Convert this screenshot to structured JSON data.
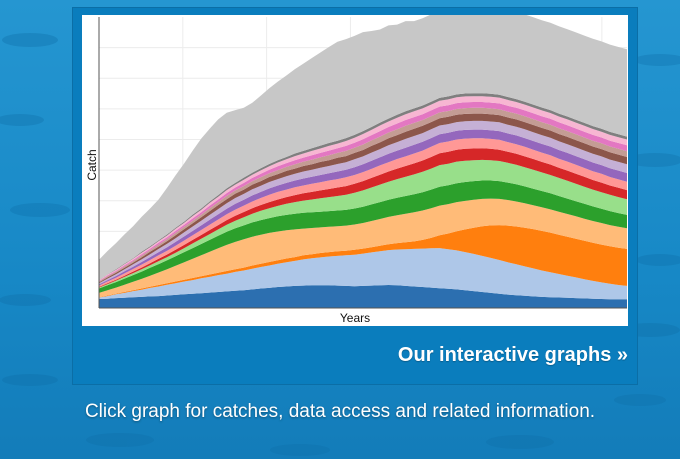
{
  "link": {
    "label": "Our interactive graphs »"
  },
  "caption": "Click graph for catches, data access and related information.",
  "colors": {
    "background": "#1a8bc6",
    "card": "#0a7dbd",
    "series": [
      "#2c6fb0",
      "#aec7e8",
      "#ff7f0e",
      "#ffbb78",
      "#2ca02c",
      "#98df8a",
      "#d62728",
      "#ff9896",
      "#9467bd",
      "#c5b0d5",
      "#8c564b",
      "#c49c94",
      "#e377c2",
      "#f7b6d2",
      "#7f7f7f",
      "#c7c7c7"
    ]
  },
  "chart_data": {
    "type": "area",
    "stacked": true,
    "xlabel": "Years",
    "ylabel": "Catch",
    "grid": true,
    "x": [
      1,
      2,
      3,
      4,
      5,
      6,
      7,
      8,
      9,
      10,
      11,
      12,
      13,
      14,
      15,
      16,
      17,
      18,
      19,
      20,
      21,
      22,
      23,
      24,
      25,
      26,
      27,
      28,
      29,
      30,
      31,
      32,
      33,
      34,
      35,
      36,
      37,
      38,
      39,
      40,
      41,
      42,
      43,
      44,
      45,
      46,
      47,
      48,
      49,
      50,
      51,
      52,
      53,
      54,
      55,
      56,
      57,
      58,
      59,
      60,
      61,
      62,
      63
    ],
    "ylim": [
      0,
      100
    ],
    "series": [
      {
        "values": [
          3.1,
          3.2,
          3.4,
          3.5,
          3.7,
          3.8,
          4.0,
          4.1,
          4.3,
          4.5,
          4.7,
          4.9,
          5.1,
          5.3,
          5.5,
          5.7,
          5.9,
          6.1,
          6.4,
          6.7,
          6.9,
          7.2,
          7.4,
          7.6,
          7.7,
          7.8,
          7.8,
          7.8,
          7.7,
          7.6,
          7.5,
          7.6,
          7.7,
          7.8,
          7.9,
          7.8,
          7.6,
          7.4,
          7.2,
          7.0,
          6.8,
          6.6,
          6.4,
          6.1,
          5.8,
          5.5,
          5.2,
          4.9,
          4.6,
          4.4,
          4.2,
          4.0,
          3.8,
          3.7,
          3.6,
          3.5,
          3.4,
          3.3,
          3.2,
          3.1,
          3.0,
          3.0,
          3.0
        ]
      },
      {
        "values": [
          0.5,
          0.9,
          1.3,
          1.7,
          2.1,
          2.5,
          2.9,
          3.3,
          3.7,
          4.0,
          4.4,
          4.7,
          5.1,
          5.4,
          5.8,
          6.1,
          6.5,
          6.8,
          7.1,
          7.4,
          7.7,
          8.0,
          8.3,
          8.6,
          9.0,
          9.3,
          9.6,
          9.9,
          10.2,
          10.5,
          10.8,
          11.1,
          11.4,
          11.7,
          12.0,
          12.3,
          12.6,
          12.9,
          13.2,
          13.5,
          13.8,
          13.6,
          13.4,
          13.1,
          12.8,
          12.4,
          12.0,
          11.6,
          11.1,
          10.6,
          10.1,
          9.6,
          9.1,
          8.6,
          8.1,
          7.6,
          7.1,
          6.6,
          6.1,
          5.7,
          5.3,
          4.9,
          4.6
        ]
      },
      {
        "values": [
          0.1,
          0.2,
          0.2,
          0.3,
          0.3,
          0.4,
          0.4,
          0.5,
          0.5,
          0.6,
          0.6,
          0.7,
          0.7,
          0.8,
          0.8,
          0.9,
          0.9,
          1.0,
          1.1,
          1.1,
          1.2,
          1.2,
          1.3,
          1.3,
          1.4,
          1.4,
          1.5,
          1.5,
          1.6,
          1.6,
          1.7,
          1.7,
          1.8,
          1.9,
          2.0,
          2.2,
          2.4,
          2.6,
          3.0,
          3.6,
          4.4,
          5.4,
          6.6,
          7.8,
          9.0,
          10.2,
          11.2,
          12.0,
          12.6,
          13.0,
          13.3,
          13.5,
          13.6,
          13.6,
          13.5,
          13.4,
          13.3,
          13.2,
          13.1,
          13.0,
          12.9,
          12.8,
          12.7
        ]
      },
      {
        "values": [
          1.5,
          1.8,
          2.1,
          2.5,
          2.9,
          3.3,
          3.8,
          4.3,
          4.8,
          5.4,
          6.0,
          6.6,
          7.2,
          7.8,
          8.4,
          9.0,
          9.4,
          9.7,
          9.9,
          10.0,
          10.0,
          9.9,
          9.7,
          9.5,
          9.2,
          9.0,
          8.8,
          8.7,
          8.6,
          8.6,
          8.7,
          8.8,
          9.0,
          9.2,
          9.4,
          9.6,
          9.8,
          10.0,
          10.1,
          10.2,
          10.2,
          10.1,
          10.0,
          9.8,
          9.6,
          9.4,
          9.2,
          9.0,
          8.8,
          8.6,
          8.4,
          8.2,
          8.1,
          8.0,
          7.9,
          7.8,
          7.7,
          7.6,
          7.5,
          7.4,
          7.3,
          7.2,
          7.1
        ]
      },
      {
        "values": [
          1.5,
          1.7,
          1.9,
          2.1,
          2.3,
          2.5,
          2.7,
          2.9,
          3.1,
          3.3,
          3.5,
          3.7,
          3.9,
          4.1,
          4.3,
          4.5,
          4.7,
          4.8,
          4.9,
          5.0,
          5.1,
          5.2,
          5.3,
          5.4,
          5.4,
          5.4,
          5.4,
          5.4,
          5.4,
          5.4,
          5.5,
          5.6,
          5.7,
          5.8,
          5.9,
          6.0,
          6.1,
          6.2,
          6.3,
          6.4,
          6.5,
          6.5,
          6.5,
          6.5,
          6.4,
          6.3,
          6.2,
          6.1,
          6.0,
          5.9,
          5.8,
          5.7,
          5.6,
          5.5,
          5.4,
          5.3,
          5.2,
          5.1,
          5.0,
          4.9,
          4.8,
          4.7,
          4.6
        ]
      },
      {
        "values": [
          0.3,
          0.4,
          0.5,
          0.6,
          0.7,
          0.8,
          0.9,
          1.0,
          1.1,
          1.2,
          1.4,
          1.6,
          1.8,
          2.0,
          2.2,
          2.4,
          2.6,
          2.8,
          3.0,
          3.2,
          3.4,
          3.6,
          3.8,
          4.0,
          4.2,
          4.4,
          4.6,
          4.8,
          5.0,
          5.2,
          5.4,
          5.6,
          5.8,
          6.0,
          6.2,
          6.4,
          6.6,
          6.8,
          7.0,
          7.2,
          7.4,
          7.4,
          7.4,
          7.3,
          7.2,
          7.1,
          7.0,
          6.9,
          6.8,
          6.7,
          6.6,
          6.5,
          6.4,
          6.3,
          6.2,
          6.1,
          6.0,
          5.9,
          5.8,
          5.7,
          5.6,
          5.5,
          5.4
        ]
      },
      {
        "values": [
          0.2,
          0.3,
          0.3,
          0.4,
          0.5,
          0.6,
          0.7,
          0.8,
          0.9,
          1.0,
          1.1,
          1.2,
          1.3,
          1.4,
          1.5,
          1.6,
          1.7,
          1.8,
          1.9,
          2.0,
          2.1,
          2.2,
          2.3,
          2.4,
          2.5,
          2.6,
          2.7,
          2.8,
          2.9,
          3.0,
          3.1,
          3.2,
          3.3,
          3.4,
          3.5,
          3.6,
          3.7,
          3.8,
          3.9,
          4.0,
          4.1,
          4.1,
          4.1,
          4.1,
          4.0,
          4.0,
          3.9,
          3.9,
          3.8,
          3.8,
          3.7,
          3.7,
          3.6,
          3.6,
          3.5,
          3.5,
          3.4,
          3.4,
          3.3,
          3.3,
          3.2,
          3.2,
          3.1
        ]
      },
      {
        "values": [
          0.5,
          0.6,
          0.7,
          0.8,
          0.9,
          1.0,
          1.1,
          1.2,
          1.3,
          1.4,
          1.5,
          1.6,
          1.7,
          1.8,
          1.9,
          2.0,
          2.1,
          2.2,
          2.3,
          2.4,
          2.5,
          2.6,
          2.6,
          2.7,
          2.7,
          2.8,
          2.8,
          2.9,
          2.9,
          3.0,
          3.0,
          3.1,
          3.1,
          3.2,
          3.2,
          3.3,
          3.3,
          3.4,
          3.4,
          3.5,
          3.5,
          3.5,
          3.5,
          3.5,
          3.5,
          3.4,
          3.4,
          3.4,
          3.3,
          3.3,
          3.3,
          3.2,
          3.2,
          3.2,
          3.1,
          3.1,
          3.1,
          3.0,
          3.0,
          3.0,
          2.9,
          2.9,
          2.9
        ]
      },
      {
        "values": [
          0.4,
          0.5,
          0.6,
          0.7,
          0.8,
          0.9,
          1.0,
          1.1,
          1.2,
          1.3,
          1.4,
          1.5,
          1.6,
          1.7,
          1.8,
          1.9,
          2.0,
          2.0,
          2.1,
          2.1,
          2.2,
          2.2,
          2.3,
          2.3,
          2.4,
          2.4,
          2.5,
          2.5,
          2.6,
          2.6,
          2.7,
          2.7,
          2.8,
          2.8,
          2.9,
          2.9,
          3.0,
          3.0,
          3.0,
          3.0,
          3.0,
          3.0,
          3.0,
          3.0,
          3.0,
          3.0,
          3.0,
          3.0,
          3.0,
          3.0,
          3.0,
          3.0,
          3.0,
          3.0,
          3.0,
          3.0,
          3.0,
          3.0,
          3.0,
          3.0,
          3.0,
          3.0,
          3.0
        ]
      },
      {
        "values": [
          0.4,
          0.5,
          0.6,
          0.7,
          0.8,
          0.9,
          1.0,
          1.1,
          1.2,
          1.3,
          1.4,
          1.5,
          1.6,
          1.7,
          1.8,
          1.9,
          2.0,
          2.0,
          2.1,
          2.1,
          2.2,
          2.2,
          2.3,
          2.3,
          2.4,
          2.4,
          2.5,
          2.5,
          2.6,
          2.6,
          2.7,
          2.7,
          2.8,
          2.8,
          2.9,
          2.9,
          3.0,
          3.0,
          3.0,
          3.0,
          3.0,
          3.0,
          3.0,
          3.0,
          3.0,
          3.0,
          3.0,
          3.0,
          3.0,
          3.0,
          3.0,
          3.0,
          3.0,
          3.0,
          3.0,
          3.0,
          3.0,
          3.0,
          3.0,
          3.0,
          3.0,
          3.0,
          3.0
        ]
      },
      {
        "values": [
          0.3,
          0.4,
          0.5,
          0.5,
          0.6,
          0.7,
          0.8,
          0.8,
          0.9,
          1.0,
          1.1,
          1.1,
          1.2,
          1.3,
          1.4,
          1.4,
          1.5,
          1.5,
          1.6,
          1.6,
          1.7,
          1.7,
          1.8,
          1.8,
          1.9,
          1.9,
          2.0,
          2.0,
          2.1,
          2.1,
          2.2,
          2.2,
          2.3,
          2.3,
          2.4,
          2.4,
          2.5,
          2.5,
          2.5,
          2.5,
          2.5,
          2.5,
          2.5,
          2.5,
          2.5,
          2.5,
          2.5,
          2.5,
          2.5,
          2.5,
          2.5,
          2.5,
          2.5,
          2.5,
          2.5,
          2.5,
          2.5,
          2.5,
          2.5,
          2.5,
          2.5,
          2.5,
          2.5
        ]
      },
      {
        "values": [
          0.3,
          0.4,
          0.4,
          0.5,
          0.5,
          0.6,
          0.6,
          0.7,
          0.7,
          0.8,
          0.8,
          0.9,
          0.9,
          1.0,
          1.0,
          1.1,
          1.1,
          1.2,
          1.2,
          1.3,
          1.3,
          1.4,
          1.4,
          1.5,
          1.5,
          1.6,
          1.6,
          1.7,
          1.7,
          1.8,
          1.8,
          1.9,
          1.9,
          2.0,
          2.0,
          2.0,
          2.0,
          2.0,
          2.0,
          2.0,
          2.0,
          2.0,
          2.0,
          2.0,
          2.0,
          2.0,
          2.0,
          2.0,
          2.0,
          2.0,
          2.0,
          2.0,
          2.0,
          2.0,
          2.0,
          2.0,
          2.0,
          2.0,
          2.0,
          2.0,
          2.0,
          2.0,
          2.0
        ]
      },
      {
        "values": [
          0.2,
          0.3,
          0.3,
          0.4,
          0.4,
          0.5,
          0.5,
          0.6,
          0.6,
          0.7,
          0.7,
          0.8,
          0.8,
          0.9,
          0.9,
          1.0,
          1.0,
          1.1,
          1.1,
          1.2,
          1.2,
          1.3,
          1.3,
          1.4,
          1.4,
          1.5,
          1.5,
          1.6,
          1.6,
          1.7,
          1.7,
          1.8,
          1.8,
          1.9,
          1.9,
          2.0,
          2.0,
          2.0,
          2.0,
          2.0,
          2.0,
          2.0,
          2.0,
          2.0,
          2.0,
          2.0,
          2.0,
          2.0,
          2.0,
          2.0,
          2.0,
          2.0,
          2.0,
          2.0,
          2.0,
          2.0,
          2.0,
          2.0,
          2.0,
          2.0,
          2.0,
          2.0,
          2.0
        ]
      },
      {
        "values": [
          0.2,
          0.3,
          0.3,
          0.4,
          0.4,
          0.5,
          0.5,
          0.6,
          0.6,
          0.7,
          0.7,
          0.8,
          0.8,
          0.9,
          0.9,
          1.0,
          1.0,
          1.1,
          1.1,
          1.2,
          1.2,
          1.3,
          1.3,
          1.4,
          1.4,
          1.5,
          1.5,
          1.6,
          1.6,
          1.7,
          1.7,
          1.8,
          1.8,
          1.9,
          1.9,
          2.0,
          2.0,
          2.0,
          2.0,
          2.0,
          2.0,
          2.0,
          2.0,
          2.0,
          2.0,
          2.0,
          2.0,
          2.0,
          2.0,
          2.0,
          2.0,
          2.0,
          2.0,
          2.0,
          2.0,
          2.0,
          2.0,
          2.0,
          2.0,
          2.0,
          2.0,
          2.0,
          2.0
        ]
      },
      {
        "values": [
          0.1,
          0.1,
          0.2,
          0.2,
          0.2,
          0.3,
          0.3,
          0.3,
          0.4,
          0.4,
          0.4,
          0.5,
          0.5,
          0.5,
          0.6,
          0.6,
          0.6,
          0.7,
          0.7,
          0.7,
          0.8,
          0.8,
          0.8,
          0.9,
          0.9,
          0.9,
          1.0,
          1.0,
          1.0,
          1.0,
          1.0,
          1.0,
          1.0,
          1.0,
          1.0,
          1.0,
          1.0,
          1.0,
          1.0,
          1.0,
          1.0,
          1.0,
          1.0,
          1.0,
          1.0,
          1.0,
          1.0,
          1.0,
          1.0,
          1.0,
          1.0,
          1.0,
          1.0,
          1.0,
          1.0,
          1.0,
          1.0,
          1.0,
          1.0,
          1.0,
          1.0,
          1.0,
          1.0
        ]
      },
      {
        "values": [
          7,
          8,
          9,
          10,
          11,
          12,
          13,
          14,
          16,
          18,
          20,
          22,
          24,
          25,
          26,
          26,
          25,
          24,
          24,
          25,
          26,
          27,
          28,
          29,
          30,
          31,
          32,
          33,
          34,
          34,
          34,
          34,
          33,
          32,
          32,
          31,
          31,
          30,
          30,
          30,
          30,
          30,
          30,
          30,
          30,
          30,
          30,
          30,
          30,
          30,
          30,
          30,
          30,
          30,
          30,
          30,
          30,
          30,
          30,
          30,
          30,
          30,
          30
        ]
      }
    ]
  }
}
